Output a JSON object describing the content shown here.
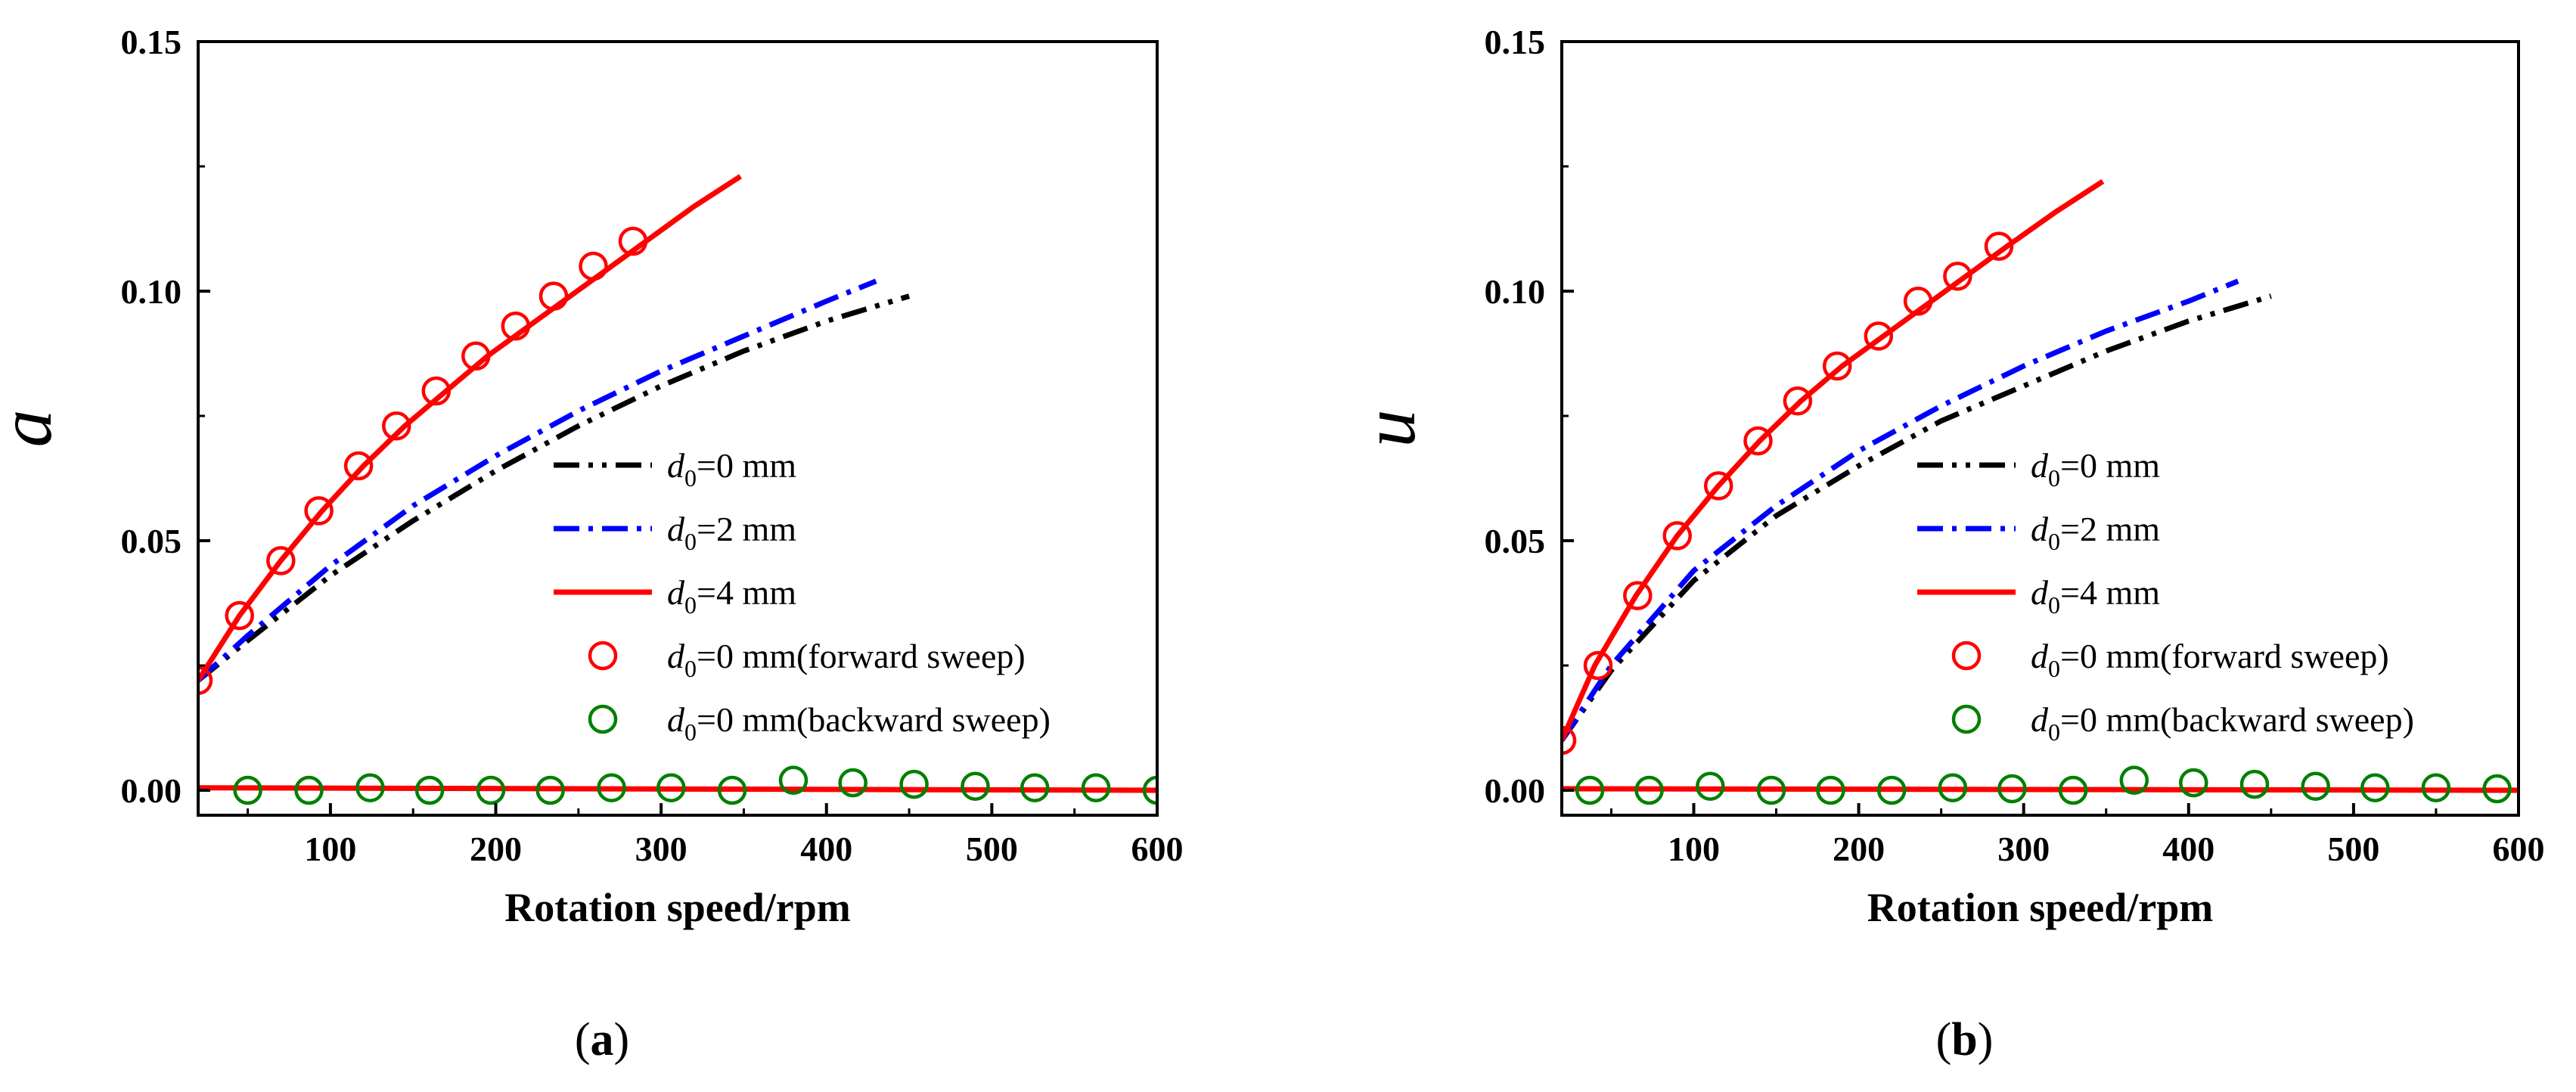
{
  "colors": {
    "d0_0": "#000000",
    "d0_2": "#0000ff",
    "d0_4": "#ff0000",
    "forward": "#ff0000",
    "backward": "#008000"
  },
  "chart_data": [
    {
      "type": "line",
      "panel_label": "(a)",
      "panel_letter": "a",
      "ylabel": "a",
      "xlabel": "Rotation speed/rpm",
      "xlim": [
        20,
        600
      ],
      "ylim": [
        -0.005,
        0.15
      ],
      "xticks": [
        100,
        200,
        300,
        400,
        500,
        600
      ],
      "xtick_labels": [
        "100",
        "200",
        "300",
        "400",
        "500",
        "600"
      ],
      "yticks": [
        0.0,
        0.05,
        0.1,
        0.15
      ],
      "ytick_labels": [
        "0.00",
        "0.05",
        "0.10",
        "0.15"
      ],
      "legend_position": "center-right",
      "series": [
        {
          "name": "d0=0 mm",
          "label_var": "d",
          "label_sub": "0",
          "label_rest": "=0 mm",
          "style": "dash-dot-dot",
          "color_key": "d0_0",
          "x": [
            20,
            50,
            100,
            150,
            200,
            250,
            300,
            350,
            400,
            450
          ],
          "y": [
            0.022,
            0.03,
            0.043,
            0.054,
            0.064,
            0.073,
            0.081,
            0.088,
            0.094,
            0.099
          ]
        },
        {
          "name": "d0=2 mm",
          "label_var": "d",
          "label_sub": "0",
          "label_rest": "=2 mm",
          "style": "dash-dot",
          "color_key": "d0_2",
          "x": [
            20,
            50,
            100,
            150,
            200,
            250,
            300,
            350,
            400,
            430
          ],
          "y": [
            0.022,
            0.031,
            0.045,
            0.057,
            0.067,
            0.076,
            0.084,
            0.091,
            0.098,
            0.102
          ]
        },
        {
          "name": "d0=4 mm",
          "label_var": "d",
          "label_sub": "0",
          "label_rest": "=4 mm",
          "style": "solid",
          "color_key": "d0_4",
          "x": [
            20,
            45,
            70,
            95,
            120,
            145,
            170,
            195,
            220,
            245,
            270,
            295,
            320,
            348
          ],
          "y": [
            0.022,
            0.035,
            0.046,
            0.056,
            0.065,
            0.073,
            0.08,
            0.087,
            0.093,
            0.099,
            0.105,
            0.111,
            0.117,
            0.123
          ]
        },
        {
          "name": "d0=4 mm (backward)",
          "legend": false,
          "style": "solid",
          "color_key": "d0_4",
          "x": [
            20,
            600
          ],
          "y": [
            0.0005,
            0.0
          ]
        },
        {
          "name": "d0=0 mm(forward sweep)",
          "label_var": "d",
          "label_sub": "0",
          "label_rest": "=0 mm(forward sweep)",
          "style": "markers",
          "color_key": "forward",
          "x": [
            20,
            45,
            70,
            93,
            117,
            140,
            164,
            188,
            212,
            235,
            259,
            283
          ],
          "y": [
            0.022,
            0.035,
            0.046,
            0.056,
            0.065,
            0.073,
            0.08,
            0.087,
            0.093,
            0.099,
            0.105,
            0.11
          ]
        },
        {
          "name": "d0=0 mm(backward sweep)",
          "label_var": "d",
          "label_sub": "0",
          "label_rest": "=0 mm(backward sweep)",
          "style": "markers",
          "color_key": "backward",
          "x": [
            50,
            87,
            124,
            160,
            197,
            233,
            270,
            306,
            343,
            380,
            416,
            453,
            490,
            526,
            563,
            600
          ],
          "y": [
            0.0,
            0.0,
            0.0005,
            0.0,
            0.0,
            0.0,
            0.0005,
            0.0005,
            0.0,
            0.002,
            0.0015,
            0.0012,
            0.0008,
            0.0005,
            0.0005,
            0.0
          ]
        }
      ]
    },
    {
      "type": "line",
      "panel_label": "(b)",
      "panel_letter": "b",
      "ylabel": "u",
      "xlabel": "Rotation speed/rpm",
      "xlim": [
        20,
        600
      ],
      "ylim": [
        -0.005,
        0.15
      ],
      "xticks": [
        100,
        200,
        300,
        400,
        500,
        600
      ],
      "xtick_labels": [
        "100",
        "200",
        "300",
        "400",
        "500",
        "600"
      ],
      "yticks": [
        0.0,
        0.05,
        0.1,
        0.15
      ],
      "ytick_labels": [
        "0.00",
        "0.05",
        "0.10",
        "0.15"
      ],
      "legend_position": "center-right",
      "series": [
        {
          "name": "d0=0 mm",
          "label_var": "d",
          "label_sub": "0",
          "label_rest": "=0 mm",
          "style": "dash-dot-dot",
          "color_key": "d0_0",
          "x": [
            20,
            50,
            100,
            150,
            200,
            250,
            300,
            350,
            400,
            450
          ],
          "y": [
            0.01,
            0.024,
            0.042,
            0.055,
            0.065,
            0.074,
            0.081,
            0.088,
            0.094,
            0.099
          ]
        },
        {
          "name": "d0=2 mm",
          "label_var": "d",
          "label_sub": "0",
          "label_rest": "=2 mm",
          "style": "dash-dot",
          "color_key": "d0_2",
          "x": [
            20,
            50,
            100,
            150,
            200,
            250,
            300,
            350,
            400,
            430
          ],
          "y": [
            0.01,
            0.025,
            0.044,
            0.057,
            0.068,
            0.077,
            0.085,
            0.092,
            0.098,
            0.102
          ]
        },
        {
          "name": "d0=4 mm",
          "label_var": "d",
          "label_sub": "0",
          "label_rest": "=4 mm",
          "style": "solid",
          "color_key": "d0_4",
          "x": [
            20,
            40,
            65,
            90,
            115,
            140,
            165,
            190,
            215,
            240,
            265,
            290,
            320,
            348
          ],
          "y": [
            0.01,
            0.025,
            0.039,
            0.051,
            0.061,
            0.07,
            0.078,
            0.085,
            0.091,
            0.097,
            0.103,
            0.109,
            0.116,
            0.122
          ]
        },
        {
          "name": "d0=4 mm (backward)",
          "legend": false,
          "style": "solid",
          "color_key": "d0_4",
          "x": [
            20,
            600
          ],
          "y": [
            0.0003,
            0.0
          ]
        },
        {
          "name": "d0=0 mm(forward sweep)",
          "label_var": "d",
          "label_sub": "0",
          "label_rest": "=0 mm(forward sweep)",
          "style": "markers",
          "color_key": "forward",
          "x": [
            20,
            42,
            66,
            90,
            115,
            139,
            163,
            187,
            212,
            236,
            260,
            285
          ],
          "y": [
            0.01,
            0.025,
            0.039,
            0.051,
            0.061,
            0.07,
            0.078,
            0.085,
            0.091,
            0.098,
            0.103,
            0.109
          ]
        },
        {
          "name": "d0=0 mm(backward sweep)",
          "label_var": "d",
          "label_sub": "0",
          "label_rest": "=0 mm(backward sweep)",
          "style": "markers",
          "color_key": "backward",
          "x": [
            37,
            73,
            110,
            147,
            183,
            220,
            257,
            293,
            330,
            367,
            403,
            440,
            477,
            513,
            550,
            587
          ],
          "y": [
            0.0,
            0.0,
            0.0008,
            0.0,
            0.0,
            0.0,
            0.0005,
            0.0003,
            0.0,
            0.002,
            0.0015,
            0.0012,
            0.0008,
            0.0005,
            0.0005,
            0.0003
          ]
        }
      ]
    }
  ]
}
